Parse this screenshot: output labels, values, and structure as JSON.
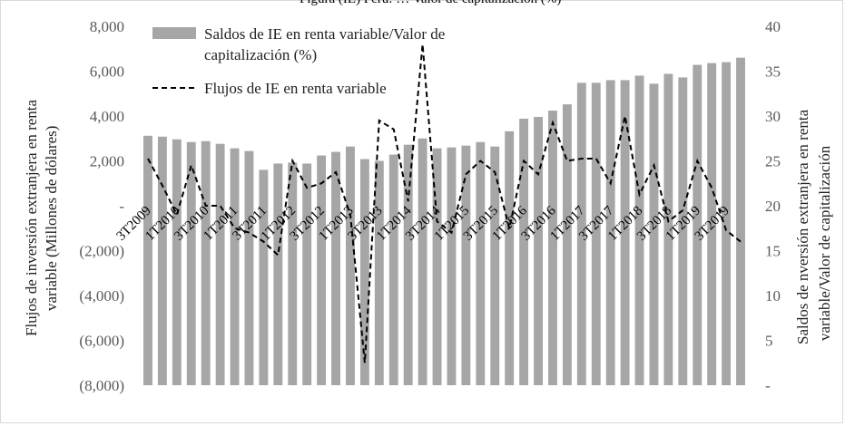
{
  "top_caption": "Figura (IE) Perú: … Valor de capitalización (%)",
  "chart_data": {
    "type": "bar+line",
    "categories": [
      "3T2009",
      "4T2009",
      "1T2010",
      "2T2010",
      "3T2010",
      "4T2010",
      "1T2011",
      "2T2011",
      "3T2011",
      "4T2011",
      "1T2012",
      "2T2012",
      "3T2012",
      "4T2012",
      "1T2013",
      "2T2013",
      "3T2013",
      "4T2013",
      "1T2014",
      "2T2014",
      "3T2014",
      "4T2014",
      "1T2015",
      "2T2015",
      "3T2015",
      "4T2015",
      "1T2016",
      "2T2016",
      "3T2016",
      "4T2016",
      "1T2017",
      "2T2017",
      "3T2017",
      "4T2017",
      "1T2018",
      "2T2018",
      "3T2018",
      "4T2018",
      "1T2019",
      "2T2019",
      "3T2019",
      "4T2019"
    ],
    "category_labels_shown": [
      "3T2009",
      "1T2010",
      "3T2010",
      "1T2011",
      "3T2011",
      "1T2012",
      "3T2012",
      "1T2013",
      "3T2013",
      "1T2014",
      "3T2014",
      "1T2015",
      "3T2015",
      "1T2016",
      "3T2016",
      "1T2017",
      "3T2017",
      "1T2018",
      "3T2018",
      "1T2019",
      "3T2019"
    ],
    "series": [
      {
        "name": "Saldos de IE en renta variable/Valor de capitalización (%)",
        "type": "bar",
        "axis": "right",
        "color": "#a6a6a6",
        "values": [
          27.8,
          27.7,
          27.4,
          27.1,
          27.2,
          26.9,
          26.4,
          26.1,
          24.0,
          24.7,
          24.8,
          24.7,
          25.6,
          26.0,
          26.6,
          25.2,
          25.0,
          25.7,
          26.8,
          27.5,
          26.4,
          26.5,
          26.7,
          27.1,
          26.6,
          28.3,
          29.7,
          29.9,
          30.6,
          31.3,
          33.7,
          33.7,
          34.0,
          34.0,
          34.5,
          33.6,
          34.7,
          34.3,
          35.7,
          35.9,
          36.0,
          36.5
        ]
      },
      {
        "name": "Flujos de IE en renta variable",
        "type": "line",
        "style": "dashed",
        "axis": "left",
        "color": "#000000",
        "values": [
          2100,
          900,
          -400,
          1800,
          0,
          0,
          -1000,
          -1200,
          -1600,
          -2200,
          2000,
          800,
          1000,
          1500,
          -400,
          -7000,
          3800,
          3400,
          200,
          7200,
          -700,
          -1200,
          1400,
          2000,
          1500,
          -1000,
          2000,
          1400,
          3700,
          2000,
          2100,
          2100,
          1000,
          4000,
          500,
          1800,
          -700,
          -200,
          2000,
          800,
          -1100,
          -1600
        ]
      }
    ],
    "y_left": {
      "label": "Flujos de inversión extranjera  en renta variable (Millones de dólares)",
      "range": [
        -8000,
        8000
      ],
      "ticks": [
        "(8,000)",
        "(6,000)",
        "(4,000)",
        "(2,000)",
        "-",
        "2,000",
        "4,000",
        "6,000",
        "8,000"
      ]
    },
    "y_right": {
      "label": "Saldos de nversión extranjera en renta variable/Valor de capitalización",
      "range": [
        0,
        40
      ],
      "ticks": [
        "-",
        "5",
        "10",
        "15",
        "20",
        "25",
        "30",
        "35",
        "40"
      ]
    },
    "legend": [
      {
        "label_line1": "Saldos de IE en renta variable/Valor de",
        "label_line2": "capitalización (%)",
        "swatch": "bar"
      },
      {
        "label_line1": "Flujos de IE en renta variable",
        "swatch": "dashed-line"
      }
    ],
    "legend_position": "top-left",
    "grid": false
  }
}
